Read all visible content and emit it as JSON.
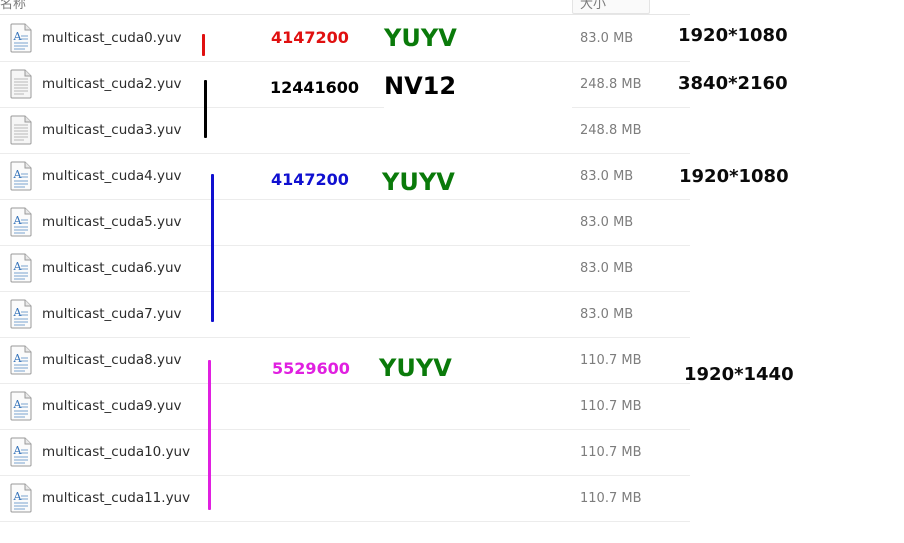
{
  "header": {
    "name_label": "名称",
    "size_label": "大小"
  },
  "files": [
    {
      "name": "multicast_cuda0.yuv",
      "size": "83.0 MB",
      "icon": "text-document-icon"
    },
    {
      "name": "multicast_cuda2.yuv",
      "size": "248.8 MB",
      "icon": "plain-document-icon"
    },
    {
      "name": "multicast_cuda3.yuv",
      "size": "248.8 MB",
      "icon": "plain-document-icon"
    },
    {
      "name": "multicast_cuda4.yuv",
      "size": "83.0 MB",
      "icon": "text-document-icon"
    },
    {
      "name": "multicast_cuda5.yuv",
      "size": "83.0 MB",
      "icon": "text-document-icon"
    },
    {
      "name": "multicast_cuda6.yuv",
      "size": "83.0 MB",
      "icon": "text-document-icon"
    },
    {
      "name": "multicast_cuda7.yuv",
      "size": "83.0 MB",
      "icon": "text-document-icon"
    },
    {
      "name": "multicast_cuda8.yuv",
      "size": "110.7 MB",
      "icon": "text-document-icon"
    },
    {
      "name": "multicast_cuda9.yuv",
      "size": "110.7 MB",
      "icon": "text-document-icon"
    },
    {
      "name": "multicast_cuda10.yuv",
      "size": "110.7 MB",
      "icon": "text-document-icon"
    },
    {
      "name": "multicast_cuda11.yuv",
      "size": "110.7 MB",
      "icon": "text-document-icon"
    }
  ],
  "annotations": {
    "group1": {
      "bytes": "4147200",
      "format": "YUYV",
      "resolution": "1920*1080",
      "color": "#e01010"
    },
    "group2": {
      "bytes": "12441600",
      "format": "NV12",
      "resolution": "3840*2160",
      "color": "#000000"
    },
    "group3": {
      "bytes": "4147200",
      "format": "YUYV",
      "resolution": "1920*1080",
      "color": "#1010d0"
    },
    "group4": {
      "bytes": "5529600",
      "format": "YUYV",
      "resolution": "1920*1440",
      "color": "#e020e0"
    }
  },
  "colors": {
    "format_green": "#0a7a0a",
    "bar_red": "#e01010",
    "bar_black": "#000000",
    "bar_blue": "#1010d0",
    "bar_magenta": "#e020e0"
  }
}
